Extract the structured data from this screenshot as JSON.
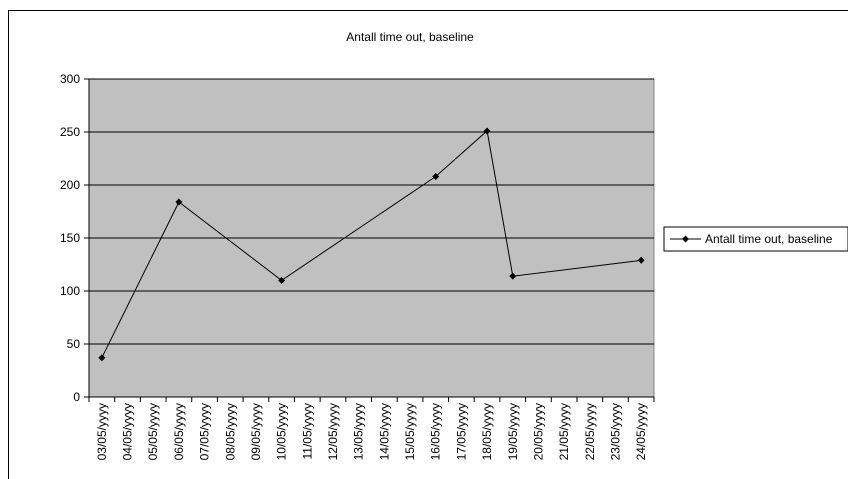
{
  "chart_data": {
    "type": "line",
    "title": "Antall time out, baseline",
    "xlabel": "",
    "ylabel": "",
    "categories": [
      "03/05/yyyy",
      "04/05/yyyy",
      "05/05/yyyy",
      "06/05/yyyy",
      "07/05/yyyy",
      "08/05/yyyy",
      "09/05/yyyy",
      "10/05/yyyy",
      "11/05/yyyy",
      "12/05/yyyy",
      "13/05/yyyy",
      "14/05/yyyy",
      "15/05/yyyy",
      "16/05/yyyy",
      "17/05/yyyy",
      "18/05/yyyy",
      "19/05/yyyy",
      "20/05/yyyy",
      "21/05/yyyy",
      "22/05/yyyy",
      "23/05/yyyy",
      "24/05/yyyy"
    ],
    "series": [
      {
        "name": "Antall time out, baseline",
        "points": [
          {
            "x": "03/05/yyyy",
            "y": 37
          },
          {
            "x": "06/05/yyyy",
            "y": 184
          },
          {
            "x": "10/05/yyyy",
            "y": 110
          },
          {
            "x": "16/05/yyyy",
            "y": 208
          },
          {
            "x": "18/05/yyyy",
            "y": 251
          },
          {
            "x": "19/05/yyyy",
            "y": 114
          },
          {
            "x": "24/05/yyyy",
            "y": 129
          }
        ]
      }
    ],
    "ylim": [
      0,
      300
    ],
    "yticks": [
      0,
      50,
      100,
      150,
      200,
      250,
      300
    ],
    "grid": true,
    "legend_position": "right",
    "colors": {
      "plot_background": "#c0c0c0",
      "line": "#000000",
      "grid": "#000000"
    }
  }
}
